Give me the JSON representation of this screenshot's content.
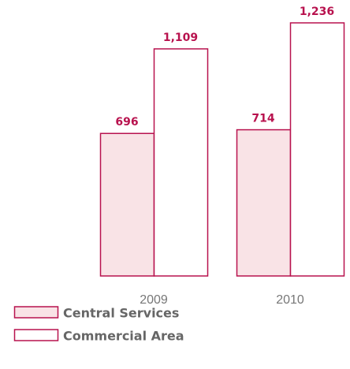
{
  "chart_data": {
    "type": "bar",
    "categories": [
      "2009",
      "2010"
    ],
    "series": [
      {
        "name": "Central Services",
        "color": "#f9e3e6",
        "values": [
          696,
          714
        ],
        "value_labels": [
          "696",
          "714"
        ]
      },
      {
        "name": "Commercial Area",
        "color": "#ffffff",
        "values": [
          1109,
          1236
        ],
        "value_labels": [
          "1,109",
          "1,236"
        ]
      }
    ],
    "edge_color": "#b8124e"
  }
}
